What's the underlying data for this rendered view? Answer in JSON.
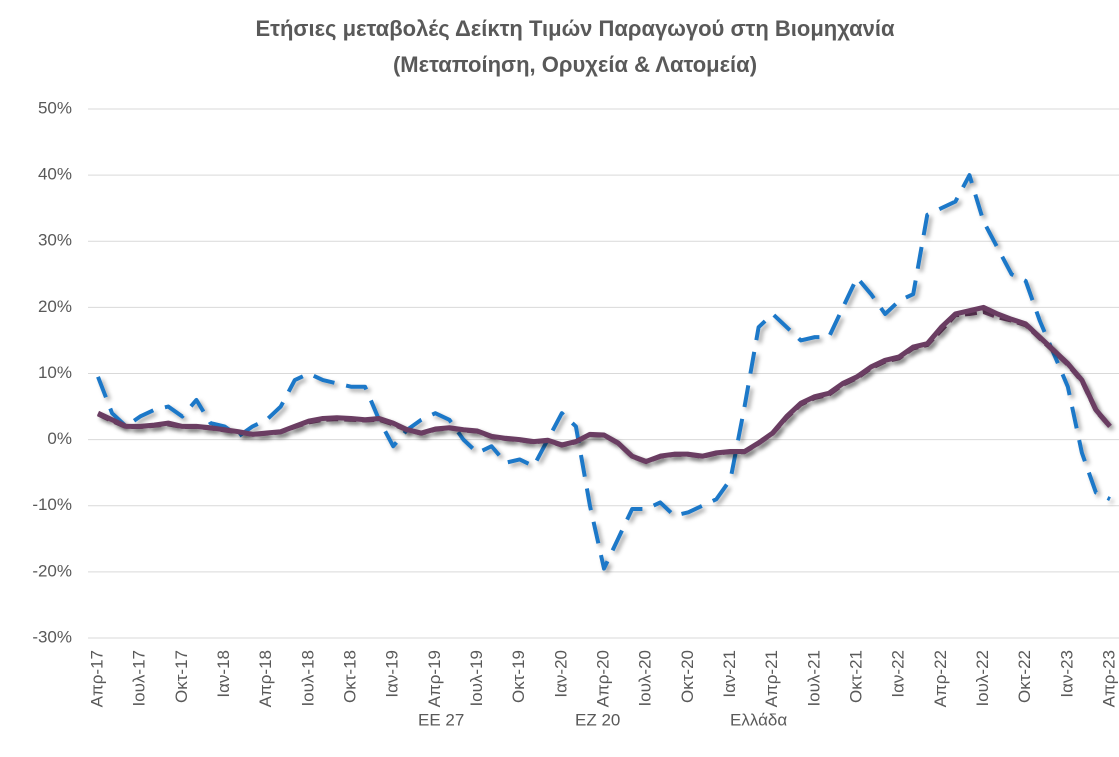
{
  "chart_data": {
    "type": "line",
    "title": [
      "Ετήσιες μεταβολές Δείκτη Τιμών Παραγωγού στη Βιομηχανία",
      "(Μεταποίηση, Ορυχεία & Λατομεία)"
    ],
    "categories": [
      "Απρ-17",
      null,
      null,
      "Ιουλ-17",
      null,
      null,
      "Οκτ-17",
      null,
      null,
      "Ιαν-18",
      null,
      null,
      "Απρ-18",
      null,
      null,
      "Ιουλ-18",
      null,
      null,
      "Οκτ-18",
      null,
      null,
      "Ιαν-19",
      null,
      null,
      "Απρ-19",
      null,
      null,
      "Ιουλ-19",
      null,
      null,
      "Οκτ-19",
      null,
      null,
      "Ιαν-20",
      null,
      null,
      "Απρ-20",
      null,
      null,
      "Ιουλ-20",
      null,
      null,
      "Οκτ-20",
      null,
      null,
      "Ιαν-21",
      null,
      null,
      "Απρ-21",
      null,
      null,
      "Ιουλ-21",
      null,
      null,
      "Οκτ-21",
      null,
      null,
      "Ιαν-22",
      null,
      null,
      "Απρ-22",
      null,
      null,
      "Ιουλ-22",
      null,
      null,
      "Οκτ-22",
      null,
      null,
      "Ιαν-23",
      null,
      null,
      "Απρ-23"
    ],
    "series": [
      {
        "name": "ΕΕ 27",
        "color": "#6b3d62",
        "line_style": "solid",
        "values": [
          4,
          3,
          2,
          2,
          2.2,
          2.5,
          2,
          2,
          1.8,
          1.5,
          1.2,
          0.8,
          1,
          1.2,
          2,
          2.8,
          3.2,
          3.3,
          3.2,
          3,
          3.2,
          2.5,
          1.5,
          1,
          1.6,
          1.8,
          1.5,
          1.3,
          0.5,
          0.2,
          0,
          -0.3,
          -0.1,
          -0.8,
          -0.3,
          0.8,
          0.7,
          -0.5,
          -2.5,
          -3.3,
          -2.5,
          -2.2,
          -2.2,
          -2.5,
          -2,
          -1.8,
          -1.8,
          -0.5,
          1,
          3.5,
          5.5,
          6.5,
          7,
          8.5,
          9.5,
          11,
          12,
          12.5,
          14,
          14.5,
          17,
          19,
          19.5,
          20,
          19,
          18.2,
          17.5,
          15.5,
          13.5,
          11.5,
          9,
          4.5,
          2
        ]
      },
      {
        "name": "ΕΖ 20",
        "color": "#6b3d62",
        "line_style": "dashed",
        "values": [
          3.8,
          2.8,
          1.9,
          1.9,
          2.1,
          2.3,
          1.9,
          1.9,
          1.7,
          1.4,
          1.1,
          0.7,
          0.9,
          1.1,
          1.9,
          2.6,
          3,
          3.1,
          3,
          2.9,
          3,
          2.3,
          1.4,
          0.9,
          1.5,
          1.7,
          1.4,
          1.2,
          0.4,
          0.1,
          -0.1,
          -0.4,
          -0.2,
          -0.9,
          -0.4,
          0.7,
          0.6,
          -0.6,
          -2.6,
          -3.4,
          -2.6,
          -2.3,
          -2.3,
          -2.6,
          -2.1,
          -1.9,
          -1.9,
          -0.6,
          0.9,
          3.3,
          5.3,
          6.3,
          6.8,
          8.3,
          9.3,
          10.8,
          11.8,
          12.3,
          13.8,
          14.3,
          16.5,
          18.8,
          19,
          19.3,
          18.5,
          18,
          17.3,
          15.3,
          13.3,
          11.3,
          8.8,
          4.3,
          1.9
        ]
      },
      {
        "name": "Ελλάδα",
        "color": "#1f78c8",
        "line_style": "long-dash",
        "values": [
          9.5,
          4,
          2,
          3.5,
          4.5,
          5,
          3.5,
          6,
          2.5,
          2,
          0.5,
          2,
          3,
          5,
          9,
          10,
          9,
          8.5,
          8,
          8,
          3,
          -1,
          1.5,
          3,
          4,
          3,
          0,
          -2,
          -1,
          -3.5,
          -3,
          -4,
          0,
          4,
          2,
          -10,
          -19.5,
          -15,
          -10.5,
          -10.5,
          -9.5,
          -11.5,
          -11,
          -10,
          -9,
          -6,
          5,
          17,
          19,
          17,
          15,
          15.5,
          15.5,
          20,
          24.5,
          22,
          19,
          21,
          22,
          34,
          35,
          36,
          40,
          33,
          29,
          25,
          24,
          18,
          13,
          8,
          -2,
          -8,
          -9
        ]
      }
    ],
    "ylim": [
      -30,
      50
    ],
    "yticks": [
      {
        "value": -30,
        "label": "-30%"
      },
      {
        "value": -20,
        "label": "-20%"
      },
      {
        "value": -10,
        "label": "-10%"
      },
      {
        "value": 0,
        "label": "0%"
      },
      {
        "value": 10,
        "label": "10%"
      },
      {
        "value": 20,
        "label": "20%"
      },
      {
        "value": 30,
        "label": "30%"
      },
      {
        "value": 40,
        "label": "40%"
      },
      {
        "value": 50,
        "label": "50%"
      }
    ],
    "grid": true,
    "legend": "bottom"
  }
}
